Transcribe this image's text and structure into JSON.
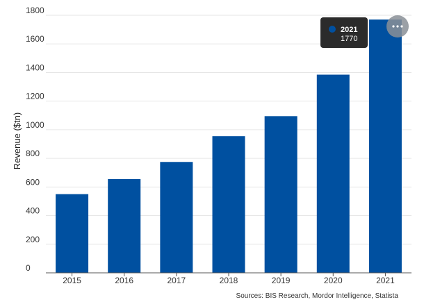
{
  "chart_data": {
    "type": "bar",
    "title": "",
    "xlabel": "",
    "ylabel": "Revenue ($tn)",
    "categories": [
      "2015",
      "2016",
      "2017",
      "2018",
      "2019",
      "2020",
      "2021"
    ],
    "values": [
      550,
      655,
      775,
      955,
      1095,
      1385,
      1770
    ],
    "ylim": [
      0,
      1800
    ],
    "yticks": [
      "0",
      "200",
      "400",
      "600",
      "800",
      "1000",
      "1200",
      "1400",
      "1600",
      "1800"
    ],
    "grid": true,
    "bar_color": "#0050a0",
    "source": "Sources: BIS Research, Mordor Intelligence, Statista",
    "tooltip": {
      "category": "2021",
      "value": "1770",
      "marker_color": "#0050a0"
    },
    "menu_icon": "ellipsis-icon"
  }
}
